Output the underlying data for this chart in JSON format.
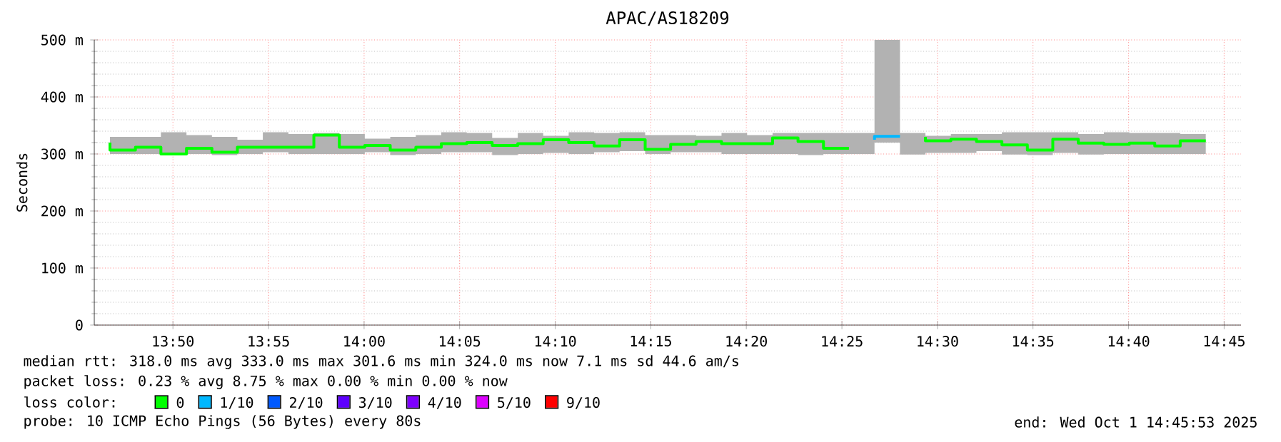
{
  "chart_data": {
    "type": "step",
    "title": "APAC/AS18209",
    "ylabel": "Seconds",
    "x": [
      13.7784,
      13.8006,
      13.8228,
      13.8451,
      13.8673,
      13.8895,
      13.9117,
      13.934,
      13.9562,
      13.9784,
      14.0006,
      14.0228,
      14.0451,
      14.0673,
      14.0895,
      14.1117,
      14.134,
      14.1562,
      14.1784,
      14.2006,
      14.2228,
      14.2451,
      14.2673,
      14.2895,
      14.3117,
      14.334,
      14.3562,
      14.3784,
      14.4006,
      14.4228,
      14.4451,
      14.4673,
      14.4895,
      14.5117,
      14.534,
      14.5562,
      14.5784,
      14.6006,
      14.6228,
      14.6451,
      14.6673,
      14.6895,
      14.7117,
      14.734
    ],
    "series": [
      {
        "name": "0",
        "color": "#00ff00",
        "values": [
          320,
          307,
          312,
          300,
          310,
          303,
          312,
          312,
          312,
          333,
          312,
          315,
          307,
          312,
          318,
          320,
          315,
          318,
          325,
          320,
          314,
          325,
          308,
          317,
          322,
          318,
          318,
          328,
          322,
          310,
          null,
          null,
          330,
          323,
          326,
          322,
          316,
          307,
          326,
          319,
          317,
          319,
          314,
          323
        ],
        "lower": [
          298,
          300,
          300,
          300,
          300,
          298,
          300,
          303,
          300,
          300,
          300,
          303,
          298,
          300,
          303,
          303,
          298,
          300,
          302,
          300,
          303,
          305,
          300,
          303,
          303,
          300,
          300,
          300,
          298,
          300,
          300,
          320,
          299,
          302,
          302,
          305,
          299,
          298,
          302,
          299,
          300,
          300,
          300,
          300
        ],
        "upper": [
          338,
          330,
          330,
          338,
          333,
          330,
          325,
          338,
          335,
          337,
          335,
          327,
          330,
          333,
          338,
          337,
          328,
          337,
          332,
          338,
          337,
          338,
          333,
          333,
          332,
          337,
          333,
          337,
          337,
          337,
          337,
          500,
          337,
          332,
          335,
          335,
          338,
          338,
          338,
          335,
          338,
          337,
          337,
          335
        ]
      },
      {
        "name": "1/10",
        "color": "#00b8ff",
        "values": [
          null,
          null,
          null,
          null,
          null,
          null,
          null,
          null,
          null,
          null,
          null,
          null,
          null,
          null,
          null,
          null,
          null,
          null,
          null,
          null,
          null,
          null,
          null,
          null,
          null,
          null,
          null,
          null,
          null,
          null,
          325,
          331,
          null,
          null,
          null,
          null,
          null,
          null,
          null,
          null,
          null,
          null,
          null,
          null
        ]
      },
      {
        "name": "2/10",
        "color": "#0059ff",
        "values": [
          null,
          null,
          null,
          null,
          null,
          null,
          null,
          null,
          null,
          null,
          null,
          null,
          null,
          null,
          null,
          null,
          null,
          null,
          null,
          null,
          null,
          null,
          null,
          null,
          null,
          null,
          null,
          null,
          null,
          null,
          null,
          null,
          null,
          null,
          null,
          null,
          null,
          null,
          null,
          null,
          null,
          null,
          null,
          null
        ]
      },
      {
        "name": "3/10",
        "color": "#5e00ff",
        "values": [
          null,
          null,
          null,
          null,
          null,
          null,
          null,
          null,
          null,
          null,
          null,
          null,
          null,
          null,
          null,
          null,
          null,
          null,
          null,
          null,
          null,
          null,
          null,
          null,
          null,
          null,
          null,
          null,
          null,
          null,
          null,
          null,
          null,
          null,
          null,
          null,
          null,
          null,
          null,
          null,
          null,
          null,
          null,
          null
        ]
      },
      {
        "name": "4/10",
        "color": "#7e00ff",
        "values": [
          null,
          null,
          null,
          null,
          null,
          null,
          null,
          null,
          null,
          null,
          null,
          null,
          null,
          null,
          null,
          null,
          null,
          null,
          null,
          null,
          null,
          null,
          null,
          null,
          null,
          null,
          null,
          null,
          null,
          null,
          null,
          null,
          null,
          null,
          null,
          null,
          null,
          null,
          null,
          null,
          null,
          null,
          null,
          null
        ]
      },
      {
        "name": "5/10",
        "color": "#dd00ff",
        "values": [
          null,
          null,
          null,
          null,
          null,
          null,
          null,
          null,
          null,
          null,
          null,
          null,
          null,
          null,
          null,
          null,
          null,
          null,
          null,
          null,
          null,
          null,
          null,
          null,
          null,
          null,
          null,
          null,
          null,
          null,
          null,
          null,
          null,
          null,
          null,
          null,
          null,
          null,
          null,
          null,
          null,
          null,
          null,
          null
        ]
      },
      {
        "name": "9/10",
        "color": "#ff0000",
        "values": [
          null,
          null,
          null,
          null,
          null,
          null,
          null,
          null,
          null,
          null,
          null,
          null,
          null,
          null,
          null,
          null,
          null,
          null,
          null,
          null,
          null,
          null,
          null,
          null,
          null,
          null,
          null,
          null,
          null,
          null,
          null,
          null,
          null,
          null,
          null,
          null,
          null,
          null,
          null,
          null,
          null,
          null,
          null,
          null
        ]
      }
    ],
    "xlim": [
      13.7647,
      14.7647
    ],
    "xticks": [
      {
        "value": 13.8333,
        "label": "13:50"
      },
      {
        "value": 13.9167,
        "label": "13:55"
      },
      {
        "value": 14.0,
        "label": "14:00"
      },
      {
        "value": 14.0833,
        "label": "14:05"
      },
      {
        "value": 14.1667,
        "label": "14:10"
      },
      {
        "value": 14.25,
        "label": "14:15"
      },
      {
        "value": 14.3333,
        "label": "14:20"
      },
      {
        "value": 14.4167,
        "label": "14:25"
      },
      {
        "value": 14.5,
        "label": "14:30"
      },
      {
        "value": 14.5833,
        "label": "14:35"
      },
      {
        "value": 14.6667,
        "label": "14:40"
      },
      {
        "value": 14.75,
        "label": "14:45"
      }
    ],
    "ylim": [
      0,
      500
    ],
    "yticks": [
      0,
      {
        "value": 100,
        "label": "100 m"
      },
      {
        "value": 200,
        "label": "200 m"
      },
      {
        "value": 300,
        "label": "300 m"
      },
      {
        "value": 400,
        "label": "400 m"
      },
      {
        "value": 500,
        "label": "500 m"
      }
    ],
    "grid": true,
    "legend": "bottom",
    "legend_title": "loss color:",
    "annotations": [
      "median rtt: 318.0 ms avg  333.0 ms max  301.6 ms min  324.0 ms now  7.1 ms sd  44.6  am/s",
      "packet loss: 0.23 % avg  8.75 % max  0.00 % min  0.00 % now",
      "probe: 10 ICMP Echo Pings (56 Bytes) every 80s",
      "end: Wed Oct  1 14:45:53 2025"
    ]
  }
}
